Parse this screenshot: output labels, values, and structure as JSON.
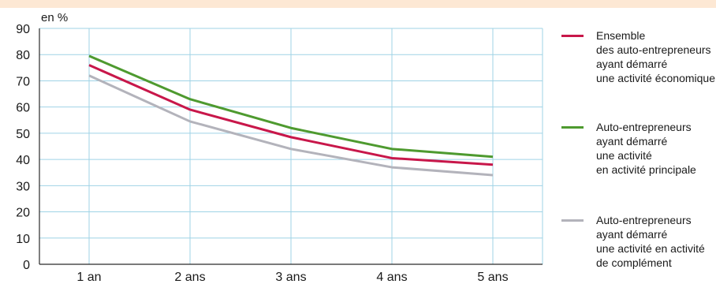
{
  "chart_data": {
    "type": "line",
    "unit_label": "en %",
    "categories": [
      "1 an",
      "2 ans",
      "3 ans",
      "4 ans",
      "5 ans"
    ],
    "ylim": [
      0,
      90
    ],
    "yticks": [
      0,
      10,
      20,
      30,
      40,
      50,
      60,
      70,
      80,
      90
    ],
    "grid": true,
    "legend_position": "right",
    "series": [
      {
        "name_lines": [
          "Ensemble",
          "des auto-entrepreneurs",
          "ayant démarré",
          "une activité économique"
        ],
        "color": "#c8174a",
        "values": [
          76,
          59,
          48.5,
          40.5,
          38
        ]
      },
      {
        "name_lines": [
          "Auto-entrepreneurs",
          "ayant démarré",
          "une activité",
          "en activité principale"
        ],
        "color": "#4e9a2f",
        "values": [
          79.5,
          63,
          52,
          44,
          41
        ]
      },
      {
        "name_lines": [
          "Auto-entrepreneurs",
          "ayant démarré",
          "une activité en activité",
          "de complément"
        ],
        "color": "#b3b3bb",
        "values": [
          72,
          54.5,
          44,
          37,
          34
        ]
      }
    ],
    "colors": {
      "grid": "#9fd3e6",
      "axis": "#2a2a2a",
      "top_band": "#fde8d4"
    }
  }
}
